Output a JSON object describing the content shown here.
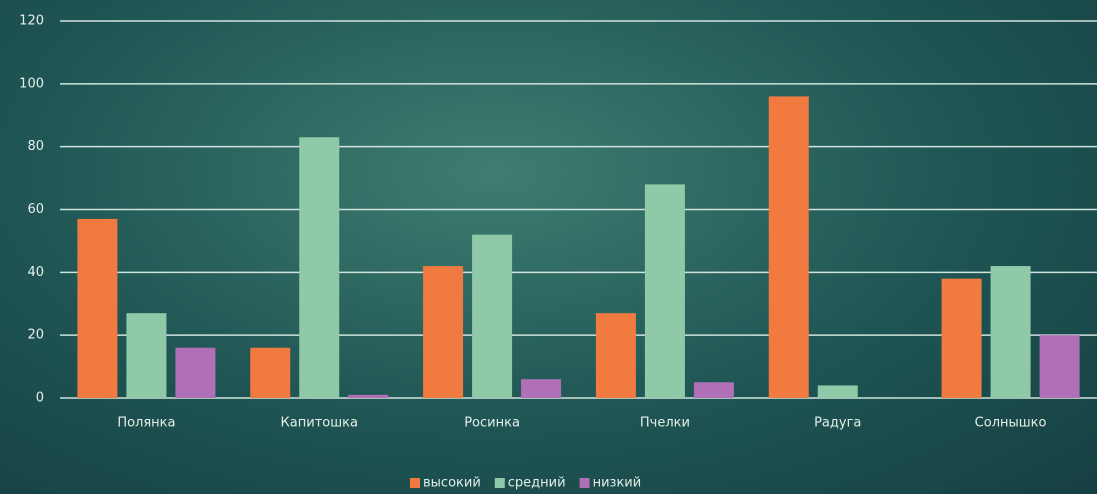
{
  "chart_data": {
    "type": "bar",
    "categories": [
      "Полянка",
      "Капитошка",
      "Росинка",
      "Пчелки",
      "Радуга",
      "Солнышко"
    ],
    "series": [
      {
        "name": "высокий",
        "color": "#f07a40",
        "values": [
          57,
          16,
          42,
          27,
          96,
          38
        ]
      },
      {
        "name": "средний",
        "color": "#8fc9a8",
        "values": [
          27,
          83,
          52,
          68,
          4,
          42
        ]
      },
      {
        "name": "низкий",
        "color": "#b070b8",
        "values": [
          16,
          1,
          6,
          5,
          0,
          20
        ]
      }
    ],
    "ylim": [
      0,
      120
    ],
    "yticks": [
      0,
      20,
      40,
      60,
      80,
      100,
      120
    ],
    "grid": true,
    "legend": "bottom"
  }
}
